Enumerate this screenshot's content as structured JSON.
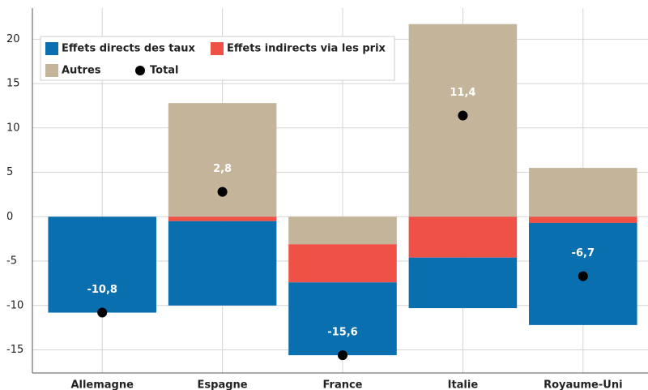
{
  "chart_data": {
    "type": "bar",
    "categories": [
      "Allemagne",
      "Espagne",
      "France",
      "Italie",
      "Royaume-Uni"
    ],
    "series": [
      {
        "name": "Effets directs des taux",
        "color": "#0a6fae",
        "values": [
          -10.8,
          -9.5,
          -8.2,
          -5.7,
          -11.5
        ]
      },
      {
        "name": "Effets indirects via les prix",
        "color": "#ef5147",
        "values": [
          0,
          -0.5,
          -4.3,
          -4.6,
          -0.7
        ]
      },
      {
        "name": "Autres",
        "color": "#c3b49a",
        "values": [
          0,
          12.8,
          -3.1,
          21.7,
          5.5
        ]
      },
      {
        "name": "Total",
        "type": "scatter",
        "color": "#000000",
        "values": [
          -10.8,
          2.8,
          -15.6,
          11.4,
          -6.7
        ],
        "value_labels": [
          "-10,8",
          "2,8",
          "-15,6",
          "11,4",
          "-6,7"
        ]
      }
    ],
    "ylim": [
      -17.6,
      23.5
    ],
    "yticks": [
      -15,
      -10,
      -5,
      0,
      5,
      10,
      15,
      20
    ],
    "grid": true,
    "legend": "upper left"
  }
}
